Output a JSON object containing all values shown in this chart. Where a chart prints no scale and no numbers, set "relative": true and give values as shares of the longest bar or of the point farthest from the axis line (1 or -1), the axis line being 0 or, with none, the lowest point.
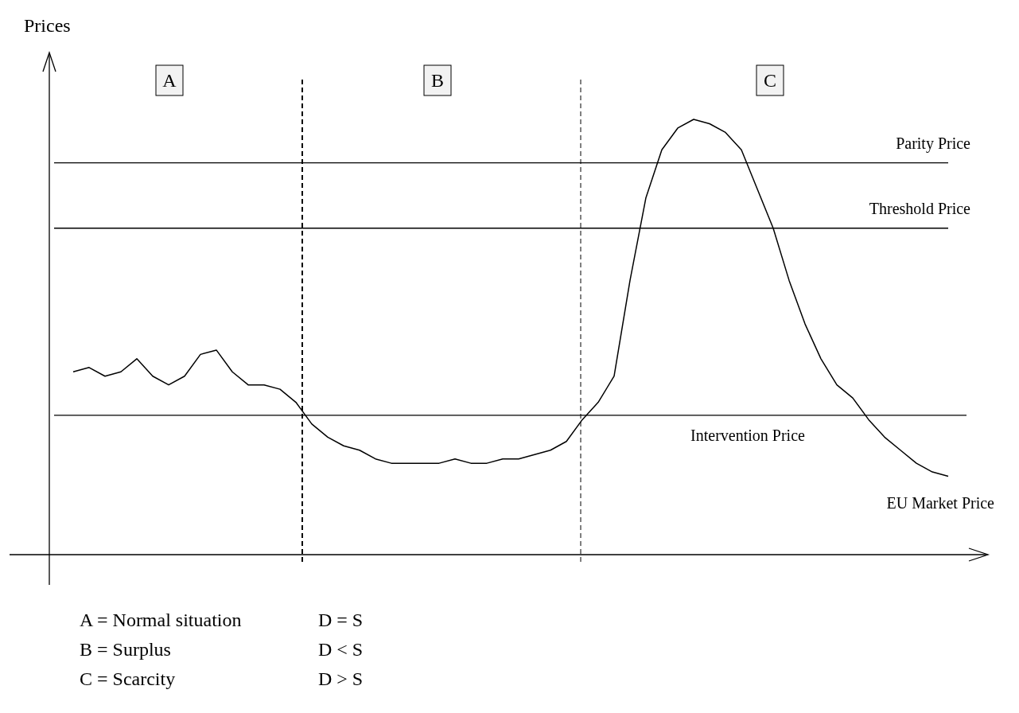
{
  "chart_data": {
    "type": "line",
    "relative": true,
    "ylabel": "Prices",
    "categories": [
      null,
      null,
      null,
      null,
      null,
      null,
      null,
      null,
      null,
      null,
      null,
      null,
      null,
      null,
      null,
      null,
      null,
      null,
      null,
      null,
      null,
      null,
      null,
      null,
      null,
      null,
      null,
      null,
      null,
      null,
      null,
      null,
      null,
      null,
      null,
      null,
      null,
      null,
      null,
      null,
      null,
      null,
      null,
      null,
      null,
      null,
      null,
      null,
      null,
      null,
      null,
      null,
      null,
      null,
      null,
      null
    ],
    "series": [
      {
        "name": "EU Market Price",
        "color": "#000000",
        "values": [
          0.42,
          0.43,
          0.41,
          0.42,
          0.45,
          0.41,
          0.39,
          0.41,
          0.46,
          0.47,
          0.42,
          0.39,
          0.39,
          0.38,
          0.35,
          0.3,
          0.27,
          0.25,
          0.24,
          0.22,
          0.21,
          0.21,
          0.21,
          0.21,
          0.22,
          0.21,
          0.21,
          0.22,
          0.22,
          0.23,
          0.24,
          0.26,
          0.31,
          0.35,
          0.41,
          0.63,
          0.82,
          0.93,
          0.98,
          1,
          0.99,
          0.97,
          0.93,
          0.84,
          0.75,
          0.63,
          0.53,
          0.45,
          0.39,
          0.36,
          0.31,
          0.27,
          0.24,
          0.21,
          0.19,
          0.18
        ]
      }
    ],
    "ref_lines": [
      {
        "axis": "y",
        "value": 0.9,
        "label": "Parity Price",
        "color": "#000000",
        "line_style": "solid"
      },
      {
        "axis": "y",
        "value": 0.75,
        "label": "Threshold Price",
        "color": "#000000",
        "line_style": "solid"
      },
      {
        "axis": "y",
        "value": 0.32,
        "label": "Intervention Price",
        "color": "#000000",
        "line_style": "solid"
      }
    ],
    "annotations": [
      "A",
      "B",
      "C",
      "A = Normal situation",
      "D = S",
      "B =  Surplus",
      "D < S",
      "C =  Scarcity",
      "D > S"
    ]
  }
}
